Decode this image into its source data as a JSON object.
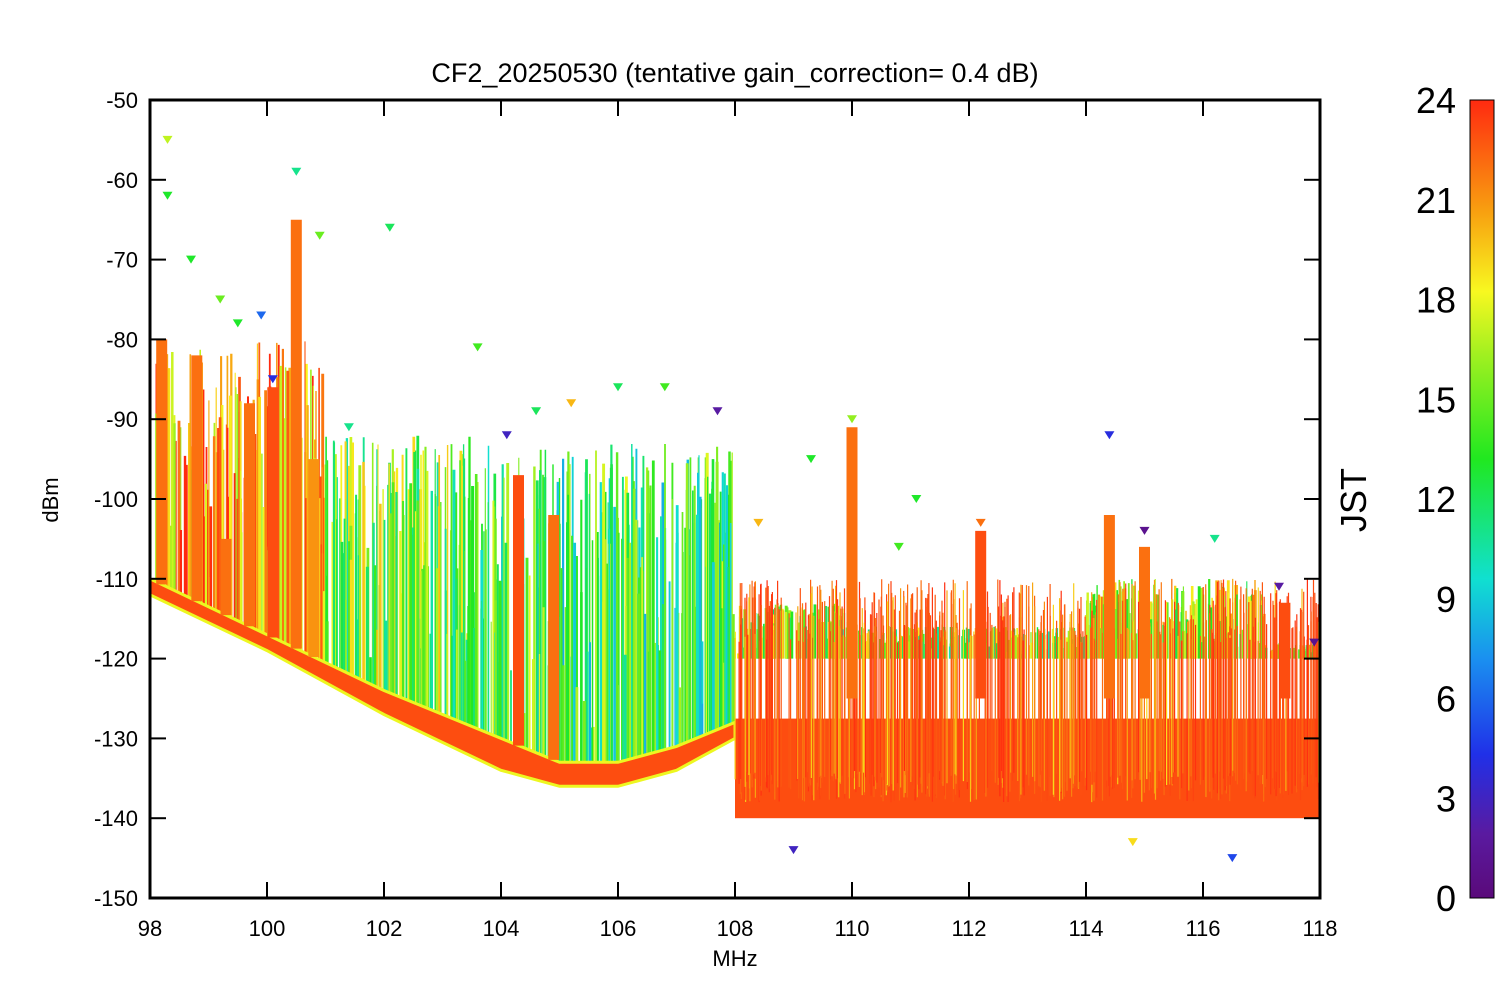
{
  "chart_data": {
    "type": "scatter",
    "title": "CF2_20250530 (tentative gain_correction=  0.4 dB)",
    "xlabel": "MHz",
    "ylabel": "dBm",
    "xlim": [
      98,
      118
    ],
    "ylim": [
      -150,
      -50
    ],
    "xticks": [
      "98",
      "100",
      "102",
      "104",
      "106",
      "108",
      "110",
      "112",
      "114",
      "116",
      "118"
    ],
    "yticks": [
      "-50",
      "-60",
      "-70",
      "-80",
      "-90",
      "-100",
      "-110",
      "-120",
      "-130",
      "-140",
      "-150"
    ],
    "grid": false,
    "colorbar": {
      "label": "JST",
      "range": [
        0,
        24
      ],
      "ticks": [
        "0",
        "3",
        "6",
        "9",
        "12",
        "15",
        "18",
        "21",
        "24"
      ],
      "colormap": "rainbow (purple-blue-cyan-green-yellow-red)"
    },
    "noise_floor": [
      {
        "x": 98,
        "y": -110
      },
      {
        "x": 100,
        "y": -117
      },
      {
        "x": 102,
        "y": -124
      },
      {
        "x": 104,
        "y": -130
      },
      {
        "x": 105,
        "y": -133
      },
      {
        "x": 106,
        "y": -133
      },
      {
        "x": 107,
        "y": -131
      },
      {
        "x": 108,
        "y": -128
      },
      {
        "x": 110,
        "y": -130
      },
      {
        "x": 112,
        "y": -130
      },
      {
        "x": 114,
        "y": -130
      },
      {
        "x": 115,
        "y": -128
      },
      {
        "x": 116,
        "y": -128
      },
      {
        "x": 118,
        "y": -130
      }
    ],
    "low_band_lower_edge": [
      {
        "x": 98,
        "y": -112
      },
      {
        "x": 100,
        "y": -119
      },
      {
        "x": 102,
        "y": -127
      },
      {
        "x": 104,
        "y": -134
      },
      {
        "x": 105,
        "y": -136
      },
      {
        "x": 106,
        "y": -136
      },
      {
        "x": 107,
        "y": -134
      },
      {
        "x": 108,
        "y": -130
      }
    ],
    "high_band_range": {
      "x_start": 108,
      "x_end": 118,
      "lower": -140,
      "upper": -120
    },
    "signal_peaks": [
      {
        "x": 98.3,
        "y": -55,
        "jst": 17
      },
      {
        "x": 98.3,
        "y": -62,
        "jst": 13
      },
      {
        "x": 98.7,
        "y": -70,
        "jst": 13
      },
      {
        "x": 99.2,
        "y": -75,
        "jst": 15
      },
      {
        "x": 99.5,
        "y": -78,
        "jst": 13
      },
      {
        "x": 99.9,
        "y": -77,
        "jst": 6
      },
      {
        "x": 100.1,
        "y": -85,
        "jst": 4
      },
      {
        "x": 100.5,
        "y": -59,
        "jst": 11
      },
      {
        "x": 100.9,
        "y": -67,
        "jst": 15
      },
      {
        "x": 101.4,
        "y": -91,
        "jst": 11
      },
      {
        "x": 102.1,
        "y": -66,
        "jst": 12
      },
      {
        "x": 103.6,
        "y": -81,
        "jst": 14
      },
      {
        "x": 104.1,
        "y": -92,
        "jst": 3
      },
      {
        "x": 104.6,
        "y": -89,
        "jst": 12
      },
      {
        "x": 105.2,
        "y": -88,
        "jst": 20
      },
      {
        "x": 106.0,
        "y": -86,
        "jst": 12
      },
      {
        "x": 106.8,
        "y": -86,
        "jst": 14
      },
      {
        "x": 107.7,
        "y": -89,
        "jst": 2
      },
      {
        "x": 108.4,
        "y": -103,
        "jst": 20
      },
      {
        "x": 109.3,
        "y": -95,
        "jst": 13
      },
      {
        "x": 110.0,
        "y": -90,
        "jst": 16
      },
      {
        "x": 110.8,
        "y": -106,
        "jst": 14
      },
      {
        "x": 111.1,
        "y": -100,
        "jst": 13
      },
      {
        "x": 112.2,
        "y": -103,
        "jst": 22
      },
      {
        "x": 114.4,
        "y": -92,
        "jst": 4
      },
      {
        "x": 115.0,
        "y": -104,
        "jst": 1
      },
      {
        "x": 116.2,
        "y": -105,
        "jst": 11
      },
      {
        "x": 117.3,
        "y": -111,
        "jst": 2
      },
      {
        "x": 117.9,
        "y": -118,
        "jst": 1
      },
      {
        "x": 116.5,
        "y": -145,
        "jst": 5
      },
      {
        "x": 114.8,
        "y": -143,
        "jst": 19
      },
      {
        "x": 109.0,
        "y": -144,
        "jst": 3
      }
    ],
    "persistent_carriers": [
      {
        "x": 98.2,
        "top": -80,
        "jst": 22
      },
      {
        "x": 98.8,
        "top": -82,
        "jst": 22
      },
      {
        "x": 99.3,
        "top": -105,
        "jst": 22
      },
      {
        "x": 99.7,
        "top": -88,
        "jst": 22
      },
      {
        "x": 100.1,
        "top": -86,
        "jst": 23
      },
      {
        "x": 100.5,
        "top": -65,
        "jst": 22
      },
      {
        "x": 100.8,
        "top": -95,
        "jst": 21
      },
      {
        "x": 104.3,
        "top": -97,
        "jst": 23
      },
      {
        "x": 104.9,
        "top": -102,
        "jst": 22
      },
      {
        "x": 110.0,
        "top": -91,
        "jst": 22
      },
      {
        "x": 112.2,
        "top": -104,
        "jst": 23
      },
      {
        "x": 114.4,
        "top": -102,
        "jst": 22
      },
      {
        "x": 115.0,
        "top": -106,
        "jst": 22
      },
      {
        "x": 117.4,
        "top": -113,
        "jst": 23
      }
    ],
    "spur_clusters": [
      {
        "x_start": 98.1,
        "x_end": 101.0,
        "top": -80,
        "jst_mode": 21
      },
      {
        "x_start": 101.0,
        "x_end": 103.5,
        "top": -92,
        "jst_mode": 15
      },
      {
        "x_start": 103.5,
        "x_end": 108.0,
        "top": -93,
        "jst_mode": 13
      },
      {
        "x_start": 108.0,
        "x_end": 110.0,
        "top": -113,
        "jst_mode": 15
      },
      {
        "x_start": 110.0,
        "x_end": 114.0,
        "top": -116,
        "jst_mode": 15
      },
      {
        "x_start": 114.0,
        "x_end": 117.0,
        "top": -110,
        "jst_mode": 17
      },
      {
        "x_start": 117.0,
        "x_end": 118.0,
        "top": -118,
        "jst_mode": 16
      }
    ]
  }
}
